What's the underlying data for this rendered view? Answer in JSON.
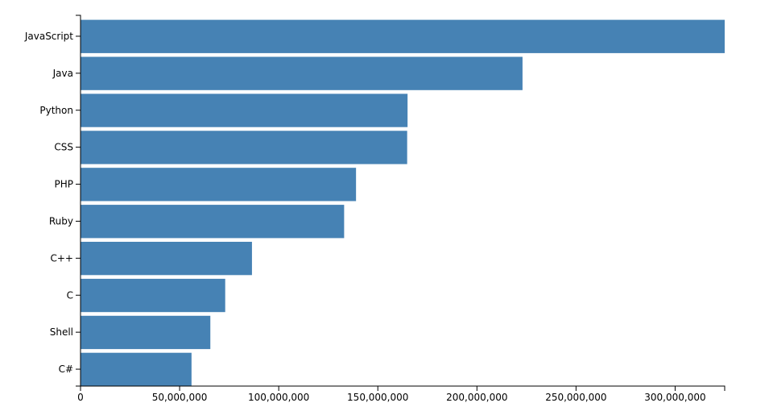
{
  "chart_data": {
    "type": "bar",
    "orientation": "horizontal",
    "title": "",
    "xlabel": "",
    "ylabel": "",
    "categories": [
      "JavaScript",
      "Java",
      "Python",
      "CSS",
      "PHP",
      "Ruby",
      "C++",
      "C",
      "Shell",
      "C#"
    ],
    "values": [
      325000000,
      223000000,
      165000000,
      164800000,
      139000000,
      133000000,
      86500000,
      73000000,
      65500000,
      56000000
    ],
    "xlim": [
      0,
      325000000
    ],
    "x_ticks": [
      0,
      50000000,
      100000000,
      150000000,
      200000000,
      250000000,
      300000000
    ],
    "x_tick_labels": [
      "0",
      "50,000,000",
      "100,000,000",
      "150,000,000",
      "200,000,000",
      "250,000,000",
      "300,000,000"
    ],
    "bar_color": "#4682b4",
    "grid": false,
    "legend": "none"
  }
}
